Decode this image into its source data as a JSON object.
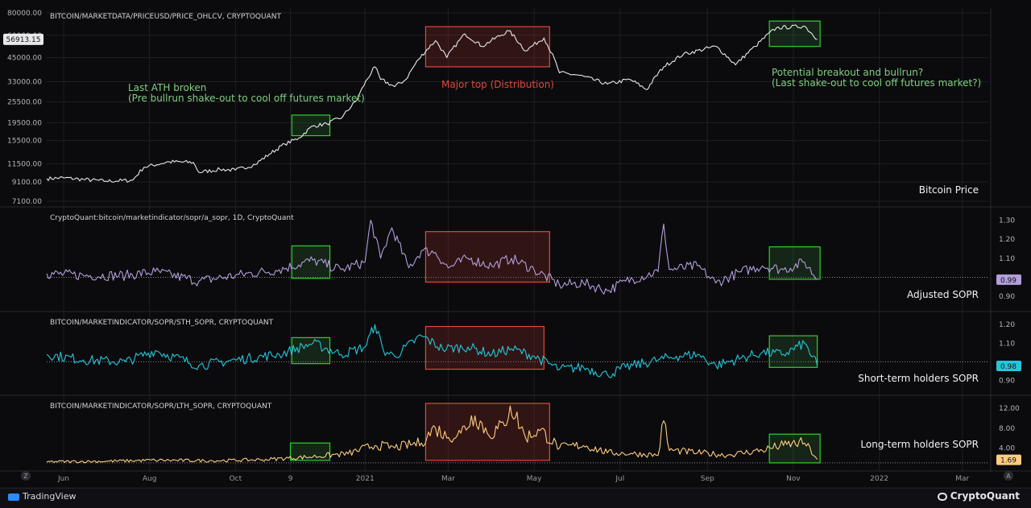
{
  "chart_data": [
    {
      "type": "line",
      "id": "price",
      "title": "BITCOIN/MARKETDATA/PRICEUSD/PRICE_OHLCV, CRYPTOQUANT",
      "series_label": "Bitcoin Price",
      "scale": "log",
      "ylim": [
        7100,
        80000
      ],
      "yticks": [
        "80000.00",
        "60000.00",
        "45000.00",
        "33000.00",
        "25500.00",
        "19500.00",
        "15500.00",
        "11500.00",
        "9100.00",
        "7100.00"
      ],
      "last_value": "56913.15",
      "color": "#e8e8ec",
      "series": [
        {
          "x": "2020-05-20",
          "y": 9500
        },
        {
          "x": "2020-06-01",
          "y": 9600
        },
        {
          "x": "2020-06-15",
          "y": 9400
        },
        {
          "x": "2020-07-01",
          "y": 9200
        },
        {
          "x": "2020-07-20",
          "y": 9300
        },
        {
          "x": "2020-07-28",
          "y": 11000
        },
        {
          "x": "2020-08-15",
          "y": 11800
        },
        {
          "x": "2020-09-01",
          "y": 11700
        },
        {
          "x": "2020-09-05",
          "y": 10300
        },
        {
          "x": "2020-09-20",
          "y": 10700
        },
        {
          "x": "2020-10-01",
          "y": 10600
        },
        {
          "x": "2020-10-15",
          "y": 11400
        },
        {
          "x": "2020-10-25",
          "y": 13000
        },
        {
          "x": "2020-11-05",
          "y": 14800
        },
        {
          "x": "2020-11-15",
          "y": 16000
        },
        {
          "x": "2020-11-25",
          "y": 18700
        },
        {
          "x": "2020-12-05",
          "y": 19200
        },
        {
          "x": "2020-12-16",
          "y": 21000
        },
        {
          "x": "2020-12-26",
          "y": 26000
        },
        {
          "x": "2021-01-08",
          "y": 40000
        },
        {
          "x": "2021-01-12",
          "y": 34000
        },
        {
          "x": "2021-01-22",
          "y": 31000
        },
        {
          "x": "2021-01-30",
          "y": 34000
        },
        {
          "x": "2021-02-08",
          "y": 44000
        },
        {
          "x": "2021-02-20",
          "y": 56000
        },
        {
          "x": "2021-02-28",
          "y": 45000
        },
        {
          "x": "2021-03-13",
          "y": 61000
        },
        {
          "x": "2021-03-25",
          "y": 52000
        },
        {
          "x": "2021-04-13",
          "y": 63500
        },
        {
          "x": "2021-04-25",
          "y": 49000
        },
        {
          "x": "2021-05-08",
          "y": 58000
        },
        {
          "x": "2021-05-19",
          "y": 37000
        },
        {
          "x": "2021-06-01",
          "y": 36000
        },
        {
          "x": "2021-06-22",
          "y": 32000
        },
        {
          "x": "2021-07-08",
          "y": 34000
        },
        {
          "x": "2021-07-20",
          "y": 29800
        },
        {
          "x": "2021-08-01",
          "y": 40000
        },
        {
          "x": "2021-08-15",
          "y": 47000
        },
        {
          "x": "2021-09-07",
          "y": 52000
        },
        {
          "x": "2021-09-21",
          "y": 41000
        },
        {
          "x": "2021-10-05",
          "y": 52000
        },
        {
          "x": "2021-10-20",
          "y": 66000
        },
        {
          "x": "2021-11-09",
          "y": 67500
        },
        {
          "x": "2021-11-18",
          "y": 56913
        }
      ]
    },
    {
      "type": "line",
      "id": "asopr",
      "title": "CryptoQuant:bitcoin/marketindicator/sopr/a_sopr, 1D, CryptoQuant",
      "series_label": "Adjusted SOPR",
      "ylim": [
        0.85,
        1.34
      ],
      "yticks": [
        "1.30",
        "1.20",
        "1.10",
        "0.99",
        "0.90"
      ],
      "last_value": "0.99",
      "reference": 1.0,
      "color": "#b39ddb",
      "series": [
        {
          "x": "2020-05-20",
          "y": 1.02
        },
        {
          "x": "2020-06-15",
          "y": 1.01
        },
        {
          "x": "2020-07-15",
          "y": 1.01
        },
        {
          "x": "2020-08-05",
          "y": 1.03
        },
        {
          "x": "2020-09-05",
          "y": 0.98
        },
        {
          "x": "2020-10-01",
          "y": 1.01
        },
        {
          "x": "2020-11-01",
          "y": 1.04
        },
        {
          "x": "2020-11-25",
          "y": 1.09
        },
        {
          "x": "2020-12-15",
          "y": 1.04
        },
        {
          "x": "2021-01-01",
          "y": 1.08
        },
        {
          "x": "2021-01-05",
          "y": 1.3
        },
        {
          "x": "2021-01-12",
          "y": 1.1
        },
        {
          "x": "2021-01-20",
          "y": 1.26
        },
        {
          "x": "2021-02-01",
          "y": 1.05
        },
        {
          "x": "2021-02-10",
          "y": 1.14
        },
        {
          "x": "2021-02-20",
          "y": 1.13
        },
        {
          "x": "2021-03-01",
          "y": 1.05
        },
        {
          "x": "2021-03-15",
          "y": 1.1
        },
        {
          "x": "2021-04-01",
          "y": 1.06
        },
        {
          "x": "2021-04-15",
          "y": 1.1
        },
        {
          "x": "2021-05-01",
          "y": 1.04
        },
        {
          "x": "2021-05-19",
          "y": 0.96
        },
        {
          "x": "2021-06-05",
          "y": 0.97
        },
        {
          "x": "2021-06-22",
          "y": 0.93
        },
        {
          "x": "2021-07-05",
          "y": 0.98
        },
        {
          "x": "2021-07-28",
          "y": 1.03
        },
        {
          "x": "2021-08-01",
          "y": 1.28
        },
        {
          "x": "2021-08-05",
          "y": 1.04
        },
        {
          "x": "2021-08-25",
          "y": 1.06
        },
        {
          "x": "2021-09-07",
          "y": 0.97
        },
        {
          "x": "2021-09-25",
          "y": 1.03
        },
        {
          "x": "2021-10-10",
          "y": 1.06
        },
        {
          "x": "2021-10-25",
          "y": 1.04
        },
        {
          "x": "2021-11-09",
          "y": 1.08
        },
        {
          "x": "2021-11-18",
          "y": 0.99
        }
      ]
    },
    {
      "type": "line",
      "id": "sth",
      "title": "BITCOIN/MARKETINDICATOR/SOPR/STH_SOPR, CRYPTOQUANT",
      "series_label": "Short-term holders SOPR",
      "ylim": [
        0.85,
        1.24
      ],
      "yticks": [
        "1.20",
        "1.10",
        "0.98",
        "0.90"
      ],
      "last_value": "0.98",
      "reference": 1.0,
      "color": "#26c6da",
      "series": [
        {
          "x": "2020-05-20",
          "y": 1.04
        },
        {
          "x": "2020-06-15",
          "y": 1.01
        },
        {
          "x": "2020-07-15",
          "y": 1.0
        },
        {
          "x": "2020-08-05",
          "y": 1.06
        },
        {
          "x": "2020-09-05",
          "y": 0.98
        },
        {
          "x": "2020-10-01",
          "y": 1.01
        },
        {
          "x": "2020-11-01",
          "y": 1.04
        },
        {
          "x": "2020-11-25",
          "y": 1.1
        },
        {
          "x": "2020-12-15",
          "y": 1.04
        },
        {
          "x": "2021-01-01",
          "y": 1.08
        },
        {
          "x": "2021-01-08",
          "y": 1.2
        },
        {
          "x": "2021-01-14",
          "y": 1.06
        },
        {
          "x": "2021-01-22",
          "y": 1.03
        },
        {
          "x": "2021-02-10",
          "y": 1.14
        },
        {
          "x": "2021-02-25",
          "y": 1.07
        },
        {
          "x": "2021-03-15",
          "y": 1.08
        },
        {
          "x": "2021-04-01",
          "y": 1.04
        },
        {
          "x": "2021-04-15",
          "y": 1.07
        },
        {
          "x": "2021-05-01",
          "y": 1.03
        },
        {
          "x": "2021-05-19",
          "y": 0.96
        },
        {
          "x": "2021-06-05",
          "y": 0.97
        },
        {
          "x": "2021-06-22",
          "y": 0.93
        },
        {
          "x": "2021-07-05",
          "y": 0.97
        },
        {
          "x": "2021-07-28",
          "y": 1.01
        },
        {
          "x": "2021-08-10",
          "y": 1.03
        },
        {
          "x": "2021-08-25",
          "y": 1.04
        },
        {
          "x": "2021-09-07",
          "y": 0.98
        },
        {
          "x": "2021-09-25",
          "y": 1.02
        },
        {
          "x": "2021-10-10",
          "y": 1.05
        },
        {
          "x": "2021-10-25",
          "y": 1.04
        },
        {
          "x": "2021-11-09",
          "y": 1.1
        },
        {
          "x": "2021-11-18",
          "y": 0.98
        }
      ]
    },
    {
      "type": "line",
      "id": "lth",
      "title": "BITCOIN/MARKETINDICATOR/SOPR/LTH_SOPR, CRYPTOQUANT",
      "series_label": "Long-term holders SOPR",
      "ylim": [
        0.5,
        13.5
      ],
      "yticks": [
        "12.00",
        "8.00",
        "4.00",
        "1.69"
      ],
      "last_value": "1.69",
      "reference": 1.0,
      "color": "#ffcc80",
      "series": [
        {
          "x": "2020-05-20",
          "y": 1.2
        },
        {
          "x": "2020-07-01",
          "y": 1.3
        },
        {
          "x": "2020-08-05",
          "y": 1.5
        },
        {
          "x": "2020-09-15",
          "y": 1.4
        },
        {
          "x": "2020-10-20",
          "y": 1.6
        },
        {
          "x": "2020-11-25",
          "y": 2.2
        },
        {
          "x": "2020-12-20",
          "y": 2.8
        },
        {
          "x": "2021-01-08",
          "y": 4.5
        },
        {
          "x": "2021-01-22",
          "y": 4.0
        },
        {
          "x": "2021-02-10",
          "y": 5.0
        },
        {
          "x": "2021-02-20",
          "y": 8.0
        },
        {
          "x": "2021-02-28",
          "y": 6.0
        },
        {
          "x": "2021-03-10",
          "y": 7.0
        },
        {
          "x": "2021-03-20",
          "y": 10.5
        },
        {
          "x": "2021-03-30",
          "y": 6.5
        },
        {
          "x": "2021-04-10",
          "y": 8.5
        },
        {
          "x": "2021-04-14",
          "y": 12.5
        },
        {
          "x": "2021-04-25",
          "y": 6.0
        },
        {
          "x": "2021-05-05",
          "y": 7.5
        },
        {
          "x": "2021-05-19",
          "y": 4.0
        },
        {
          "x": "2021-06-05",
          "y": 4.5
        },
        {
          "x": "2021-06-22",
          "y": 3.0
        },
        {
          "x": "2021-07-10",
          "y": 2.8
        },
        {
          "x": "2021-07-28",
          "y": 2.5
        },
        {
          "x": "2021-08-01",
          "y": 9.5
        },
        {
          "x": "2021-08-05",
          "y": 3.5
        },
        {
          "x": "2021-08-25",
          "y": 3.0
        },
        {
          "x": "2021-09-15",
          "y": 2.5
        },
        {
          "x": "2021-10-10",
          "y": 3.5
        },
        {
          "x": "2021-10-25",
          "y": 4.5
        },
        {
          "x": "2021-11-09",
          "y": 5.0
        },
        {
          "x": "2021-11-18",
          "y": 1.69
        }
      ]
    }
  ],
  "x_axis": {
    "ticks": [
      {
        "label": "Jun",
        "date": "2020-06-01"
      },
      {
        "label": "Aug",
        "date": "2020-08-01"
      },
      {
        "label": "Oct",
        "date": "2020-10-01"
      },
      {
        "label": "9",
        "date": "2020-11-09"
      },
      {
        "label": "2021",
        "date": "2021-01-01"
      },
      {
        "label": "Mar",
        "date": "2021-03-01"
      },
      {
        "label": "May",
        "date": "2021-05-01"
      },
      {
        "label": "Jul",
        "date": "2021-07-01"
      },
      {
        "label": "Sep",
        "date": "2021-09-01"
      },
      {
        "label": "Nov",
        "date": "2021-11-01"
      },
      {
        "label": "2022",
        "date": "2022-01-01"
      },
      {
        "label": "Mar",
        "date": "2022-03-01"
      }
    ]
  },
  "boxes": [
    {
      "panel": "price",
      "start": "2020-11-10",
      "end": "2020-12-07",
      "y0": 16500,
      "y1": 21500,
      "kind": "green"
    },
    {
      "panel": "price",
      "start": "2021-02-13",
      "end": "2021-05-12",
      "y0": 40000,
      "y1": 67000,
      "kind": "red"
    },
    {
      "panel": "price",
      "start": "2021-10-15",
      "end": "2021-11-20",
      "y0": 52000,
      "y1": 72000,
      "kind": "green"
    },
    {
      "panel": "asopr",
      "start": "2020-11-10",
      "end": "2020-12-07",
      "y0": 0.995,
      "y1": 1.165,
      "kind": "green"
    },
    {
      "panel": "asopr",
      "start": "2021-02-13",
      "end": "2021-05-12",
      "y0": 0.975,
      "y1": 1.24,
      "kind": "red"
    },
    {
      "panel": "asopr",
      "start": "2021-10-15",
      "end": "2021-11-20",
      "y0": 0.99,
      "y1": 1.16,
      "kind": "green"
    },
    {
      "panel": "sth",
      "start": "2020-11-10",
      "end": "2020-12-07",
      "y0": 0.99,
      "y1": 1.13,
      "kind": "green"
    },
    {
      "panel": "sth",
      "start": "2021-02-13",
      "end": "2021-05-08",
      "y0": 0.96,
      "y1": 1.19,
      "kind": "red"
    },
    {
      "panel": "sth",
      "start": "2021-10-15",
      "end": "2021-11-18",
      "y0": 0.97,
      "y1": 1.14,
      "kind": "green"
    },
    {
      "panel": "lth",
      "start": "2020-11-09",
      "end": "2020-12-07",
      "y0": 1.5,
      "y1": 5.0,
      "kind": "green"
    },
    {
      "panel": "lth",
      "start": "2021-02-13",
      "end": "2021-05-12",
      "y0": 1.5,
      "y1": 13.0,
      "kind": "red"
    },
    {
      "panel": "lth",
      "start": "2021-10-15",
      "end": "2021-11-20",
      "y0": 1.0,
      "y1": 6.8,
      "kind": "green"
    }
  ],
  "annotations": {
    "ath_line1": "Last ATH broken",
    "ath_line2": "(Pre bullrun shake-out to cool off futures market)",
    "top": "Major top (Distribution)",
    "breakout_line1": "Potential breakout and bullrun?",
    "breakout_line2": "(Last shake-out to cool off futures market?)"
  },
  "colors": {
    "green": "#2fd12f",
    "red": "#e0493b",
    "green_text": "#7fcf7f",
    "red_text": "#e0493b",
    "grid": "#1f1f24"
  },
  "footer": {
    "left_brand": "TradingView",
    "right_brand": "CryptoQuant",
    "corner_left": "Z",
    "corner_right": "A"
  }
}
